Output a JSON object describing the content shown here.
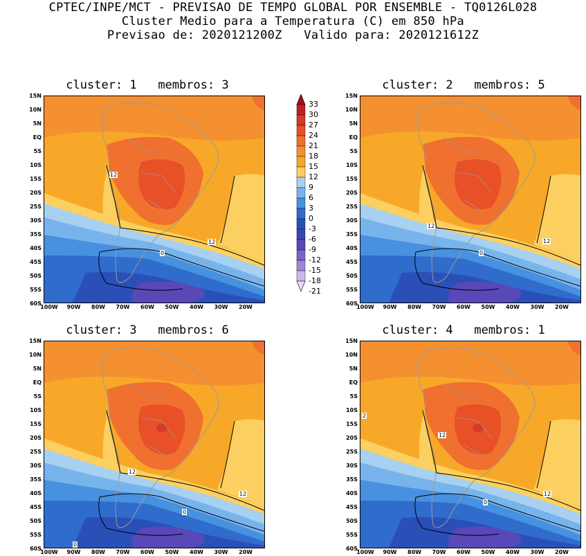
{
  "header": {
    "line1": "CPTEC/INPE/MCT - PREVISAO DE TEMPO GLOBAL POR ENSEMBLE - TQ0126L028",
    "line2": "Cluster Medio para a Temperatura (C) em 850 hPa",
    "line3": "Previsao de: 2020121200Z   Valido para: 2020121612Z"
  },
  "lat_labels": [
    "15N",
    "10N",
    "5N",
    "EQ",
    "5S",
    "10S",
    "15S",
    "20S",
    "25S",
    "30S",
    "35S",
    "40S",
    "45S",
    "50S",
    "55S",
    "60S"
  ],
  "lon_labels": [
    "100W",
    "90W",
    "80W",
    "70W",
    "60W",
    "50W",
    "40W",
    "30W",
    "20W"
  ],
  "colorbar": {
    "labels": [
      "33",
      "30",
      "27",
      "24",
      "21",
      "18",
      "15",
      "12",
      "9",
      "6",
      "3",
      "0",
      "-3",
      "-6",
      "-9",
      "-12",
      "-15",
      "-18",
      "-21"
    ],
    "colors": [
      "#a01010",
      "#c0202a",
      "#d83828",
      "#e85028",
      "#f07030",
      "#f59030",
      "#f8a828",
      "#fcd060",
      "#a8d0f0",
      "#78b4ec",
      "#4890e0",
      "#2f6ccc",
      "#2a50b8",
      "#3848b0",
      "#5848b8",
      "#7a64c8",
      "#9c88d8",
      "#c8b8e8",
      "#e6dcf4"
    ]
  },
  "panels": [
    {
      "title": "cluster: 1   membros: 3",
      "labels": [
        "12",
        "12",
        "0"
      ]
    },
    {
      "title": "cluster: 2   membros: 5",
      "labels": [
        "12",
        "12",
        "0"
      ]
    },
    {
      "title": "cluster: 3   membros: 6",
      "labels": [
        "12",
        "12",
        "0",
        "0"
      ]
    },
    {
      "title": "cluster: 4   membros: 1",
      "labels": [
        "12",
        "12",
        "0",
        "2"
      ]
    }
  ]
}
